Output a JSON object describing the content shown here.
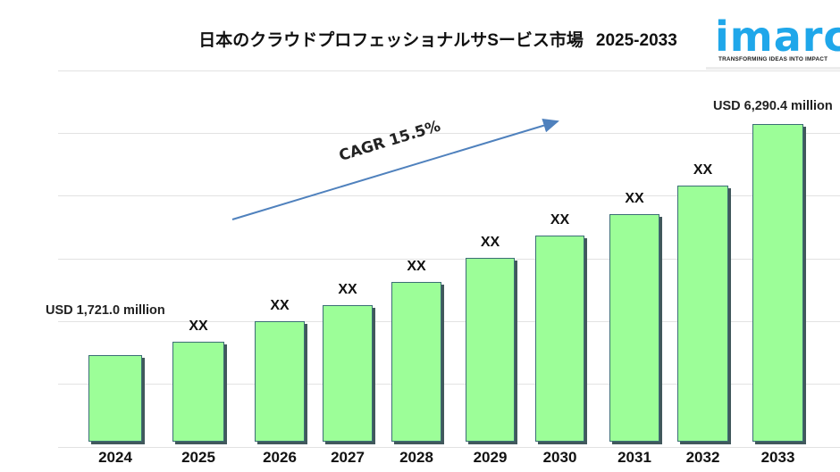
{
  "header": {
    "title": "日本のクラウドプロフェッショナルサSービス市場",
    "years": "2025-2033"
  },
  "logo": {
    "name": "imarc",
    "tagline": "TRANSFORMING IDEAS INTO IMPACT",
    "color": "#1fa7ea"
  },
  "annotation": {
    "cagr_label": "CAGR 15.5%",
    "arrow_color": "#4f81bd"
  },
  "colors": {
    "bar_fill": "#9cfe98",
    "bar_border": "#3b6e75",
    "bar_shadow": "#41585c",
    "gridline": "#e2e2e2"
  },
  "chart_data": {
    "type": "bar",
    "title": "日本のクラウドプロフェッショナルサSービス市場 2025-2033",
    "xlabel": "",
    "ylabel": "",
    "categories": [
      "2024",
      "2025",
      "2026",
      "2027",
      "2028",
      "2029",
      "2030",
      "2031",
      "2032",
      "2033"
    ],
    "values": [
      1721.0,
      1990,
      2380,
      2700,
      3170,
      3640,
      4080,
      4510,
      5080,
      6290.4
    ],
    "data_labels": [
      "USD 1,721.0 million",
      "XX",
      "XX",
      "XX",
      "XX",
      "XX",
      "XX",
      "XX",
      "XX",
      "USD 6,290.4 million"
    ],
    "units": "USD million",
    "grid": true,
    "axis_visible": false,
    "legend": null,
    "annotations": [
      "CAGR 15.5%"
    ]
  }
}
